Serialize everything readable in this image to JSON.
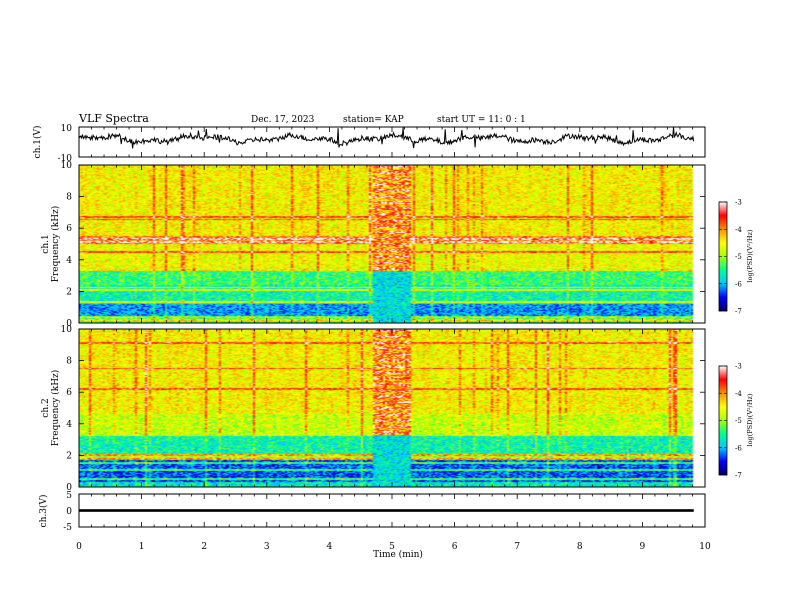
{
  "header": {
    "title": "VLF Spectra",
    "date": "Dec. 17, 2023",
    "station": "station= KAP",
    "start_ut": "start  UT =   11: 0  : 1"
  },
  "chart_data": [
    {
      "type": "line",
      "name": "ch1-waveform",
      "ylabel": "ch.1(V)",
      "ylim": [
        -10,
        10
      ],
      "yticks": [
        "10",
        "-10"
      ],
      "xlim": [
        0,
        10
      ],
      "data_extent_min": 9.82,
      "waveform": {
        "mean": 2.0,
        "amplitude_typical": 2.5,
        "spikes": true
      }
    },
    {
      "type": "heatmap",
      "name": "ch1-spectrogram",
      "ylabel": "ch.1\nFrequency (kHz)",
      "ylim": [
        0,
        10
      ],
      "yticks": [
        "0",
        "2",
        "4",
        "6",
        "8",
        "10"
      ],
      "xlim": [
        0,
        10
      ],
      "data_extent_min": 9.82,
      "background_levels": [
        {
          "f_range": [
            0,
            0.4
          ],
          "level": -5.3
        },
        {
          "f_range": [
            0.4,
            1.2
          ],
          "level": -6.1
        },
        {
          "f_range": [
            1.2,
            2.4
          ],
          "level": -5.6
        },
        {
          "f_range": [
            2.4,
            3.4
          ],
          "level": -5.4
        },
        {
          "f_range": [
            3.4,
            5.0
          ],
          "level": -4.6
        },
        {
          "f_range": [
            5.0,
            5.5
          ],
          "level": -4.0
        },
        {
          "f_range": [
            5.5,
            10
          ],
          "level": -4.5
        }
      ],
      "tonal_lines_khz": [
        6.7,
        6.55,
        5.3,
        5.1,
        4.5,
        3.35,
        2.25,
        2.1,
        1.35,
        0.4,
        0.2
      ],
      "burst_interval_min": [
        4.7,
        5.3
      ]
    },
    {
      "type": "heatmap",
      "name": "ch2-spectrogram",
      "ylabel": "ch.2\nFrequency (kHz)",
      "ylim": [
        0,
        10
      ],
      "yticks": [
        "0",
        "2",
        "4",
        "6",
        "8",
        "10"
      ],
      "xlim": [
        0,
        10
      ],
      "data_extent_min": 9.82,
      "background_levels": [
        {
          "f_range": [
            0,
            0.3
          ],
          "level": -5.7
        },
        {
          "f_range": [
            0.3,
            1.7
          ],
          "level": -6.3
        },
        {
          "f_range": [
            1.7,
            2.1
          ],
          "level": -5.0
        },
        {
          "f_range": [
            2.1,
            3.2
          ],
          "level": -5.6
        },
        {
          "f_range": [
            3.2,
            4.6
          ],
          "level": -4.8
        },
        {
          "f_range": [
            4.6,
            10
          ],
          "level": -4.5
        }
      ],
      "tonal_lines_khz": [
        9.1,
        7.5,
        6.2,
        2.0,
        1.8,
        1.5,
        1.1,
        0.5
      ],
      "burst_interval_min": [
        4.7,
        5.3
      ]
    },
    {
      "type": "line",
      "name": "ch3-waveform",
      "ylabel": "ch.3(V)",
      "ylim": [
        -5,
        5
      ],
      "yticks": [
        "5",
        "0",
        "-5"
      ],
      "xlim": [
        0,
        10
      ],
      "data_extent_min": 9.82,
      "waveform": {
        "mean": 0.0,
        "band": [
          -0.4,
          0.4
        ]
      }
    }
  ],
  "colorbars": [
    {
      "name": "ch1-colorbar",
      "label": "log(PSD)(V²/Hz)",
      "range": [
        -7,
        -3
      ],
      "ticks": [
        "-3",
        "-4",
        "-5",
        "-6",
        "-7"
      ]
    },
    {
      "name": "ch2-colorbar",
      "label": "log(PSD)(V²/Hz)",
      "range": [
        -7,
        -3
      ],
      "ticks": [
        "-3",
        "-4",
        "-5",
        "-6",
        "-7"
      ]
    }
  ],
  "x_axis": {
    "label": "Time (min)",
    "ticks": [
      "0",
      "1",
      "2",
      "3",
      "4",
      "5",
      "6",
      "7",
      "8",
      "9",
      "10"
    ],
    "range": [
      0,
      10
    ]
  },
  "colormap": [
    "#000060",
    "#0000ff",
    "#00c8ff",
    "#00ff90",
    "#a8ff00",
    "#ffff00",
    "#ff9000",
    "#ff0000",
    "#ffffff"
  ]
}
